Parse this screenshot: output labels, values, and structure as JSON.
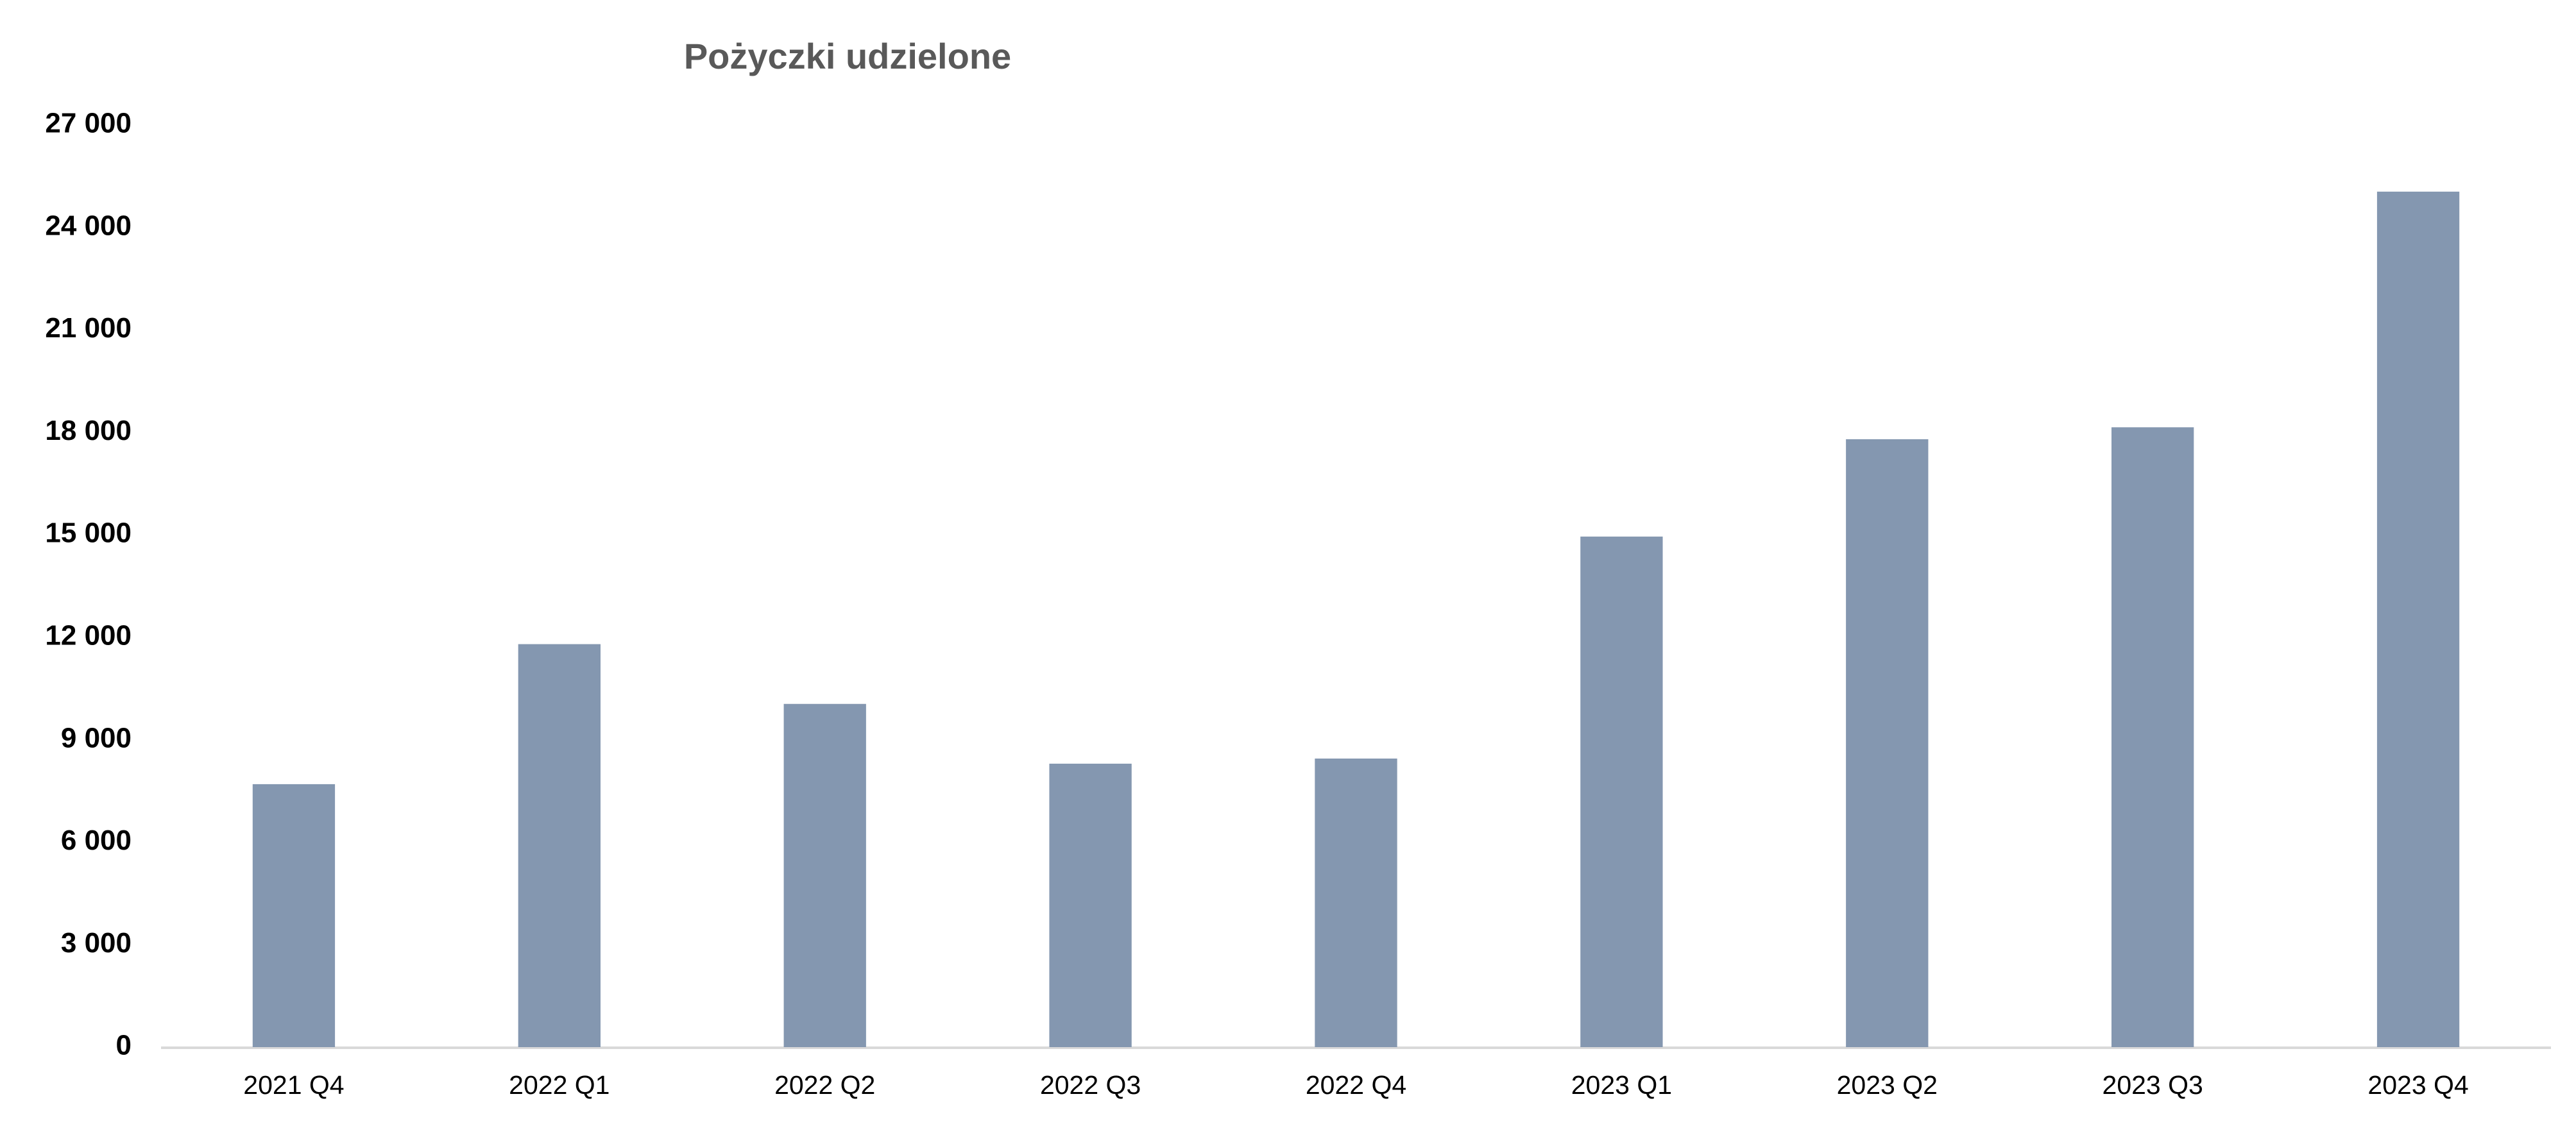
{
  "chart_data": {
    "type": "bar",
    "title": "Pożyczki udzielone",
    "categories": [
      "2021 Q4",
      "2022 Q1",
      "2022 Q2",
      "2022 Q3",
      "2022 Q4",
      "2023 Q1",
      "2023 Q2",
      "2023 Q3",
      "2023 Q4"
    ],
    "values": [
      7700,
      11800,
      10050,
      8300,
      8450,
      14950,
      17800,
      18150,
      25050
    ],
    "color": "#8497b0",
    "ylim": [
      0,
      27000
    ],
    "yticks": [
      0,
      {
        "value": 3000,
        "label": "3 000"
      },
      {
        "value": 6000,
        "label": "6 000"
      },
      {
        "value": 9000,
        "label": "9 000"
      },
      {
        "value": 12000,
        "label": "12 000"
      },
      {
        "value": 15000,
        "label": "15 000"
      },
      {
        "value": 18000,
        "label": "18 000"
      },
      {
        "value": 21000,
        "label": "21 000"
      },
      {
        "value": 24000,
        "label": "24 000"
      },
      {
        "value": 27000,
        "label": "27 000"
      }
    ],
    "grid": false
  }
}
